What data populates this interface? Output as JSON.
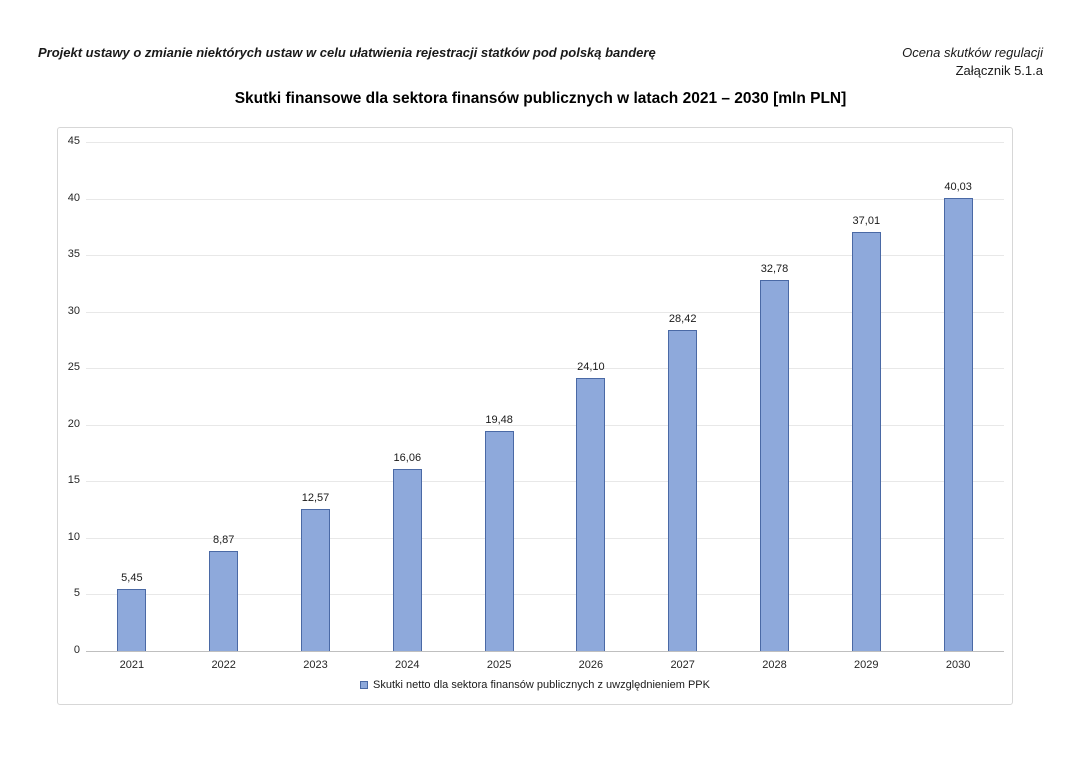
{
  "header": {
    "left_title": "Projekt ustawy o zmianie niektórych ustaw w celu ułatwienia rejestracji statków pod polską banderę",
    "right_line1": "Ocena skutków regulacji",
    "right_line2": "Załącznik 5.1.a"
  },
  "chart_data": {
    "type": "bar",
    "title": "Skutki finansowe dla sektora finansów publicznych w latach 2021 – 2030 [mln PLN]",
    "categories": [
      "2021",
      "2022",
      "2023",
      "2024",
      "2025",
      "2026",
      "2027",
      "2028",
      "2029",
      "2030"
    ],
    "values": [
      5.45,
      8.87,
      12.57,
      16.06,
      19.48,
      24.1,
      28.42,
      32.78,
      37.01,
      40.03
    ],
    "value_labels": [
      "5,45",
      "8,87",
      "12,57",
      "16,06",
      "19,48",
      "24,10",
      "28,42",
      "32,78",
      "37,01",
      "40,03"
    ],
    "series_name": "Skutki netto dla sektora finansów publicznych z uwzględnieniem PPK",
    "xlabel": "",
    "ylabel": "",
    "ylim": [
      0,
      45
    ],
    "ytick_step": 5,
    "grid": true,
    "legend_position": "bottom",
    "colors": {
      "bar_fill": "#8EA9DB",
      "bar_border": "#4A69A5",
      "gridline": "#e8e8e8",
      "axis_line": "#bfbfbf",
      "frame_border": "#d7d7d7"
    }
  }
}
